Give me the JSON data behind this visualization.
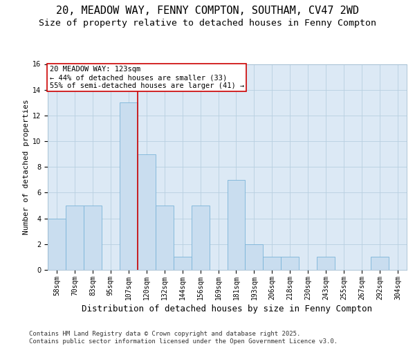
{
  "title_line1": "20, MEADOW WAY, FENNY COMPTON, SOUTHAM, CV47 2WD",
  "title_line2": "Size of property relative to detached houses in Fenny Compton",
  "xlabel": "Distribution of detached houses by size in Fenny Compton",
  "ylabel": "Number of detached properties",
  "bins": [
    "58sqm",
    "70sqm",
    "83sqm",
    "95sqm",
    "107sqm",
    "120sqm",
    "132sqm",
    "144sqm",
    "156sqm",
    "169sqm",
    "181sqm",
    "193sqm",
    "206sqm",
    "218sqm",
    "230sqm",
    "243sqm",
    "255sqm",
    "267sqm",
    "292sqm",
    "304sqm"
  ],
  "bar_values": [
    4,
    5,
    5,
    0,
    13,
    9,
    5,
    1,
    5,
    0,
    7,
    2,
    1,
    1,
    0,
    1,
    0,
    0,
    1,
    0
  ],
  "bar_color": "#c9ddef",
  "bar_edge_color": "#7ab4d8",
  "property_line_x": 4.5,
  "annotation_text": "20 MEADOW WAY: 123sqm\n← 44% of detached houses are smaller (33)\n55% of semi-detached houses are larger (41) →",
  "annotation_box_color": "#ffffff",
  "annotation_box_edge_color": "#cc0000",
  "vline_color": "#cc0000",
  "ylim": [
    0,
    16
  ],
  "yticks": [
    0,
    2,
    4,
    6,
    8,
    10,
    12,
    14,
    16
  ],
  "plot_background": "#dce9f5",
  "footer_text": "Contains HM Land Registry data © Crown copyright and database right 2025.\nContains public sector information licensed under the Open Government Licence v3.0.",
  "title_fontsize": 11,
  "subtitle_fontsize": 9.5,
  "xlabel_fontsize": 9,
  "ylabel_fontsize": 8,
  "tick_fontsize": 7,
  "annotation_fontsize": 7.5
}
